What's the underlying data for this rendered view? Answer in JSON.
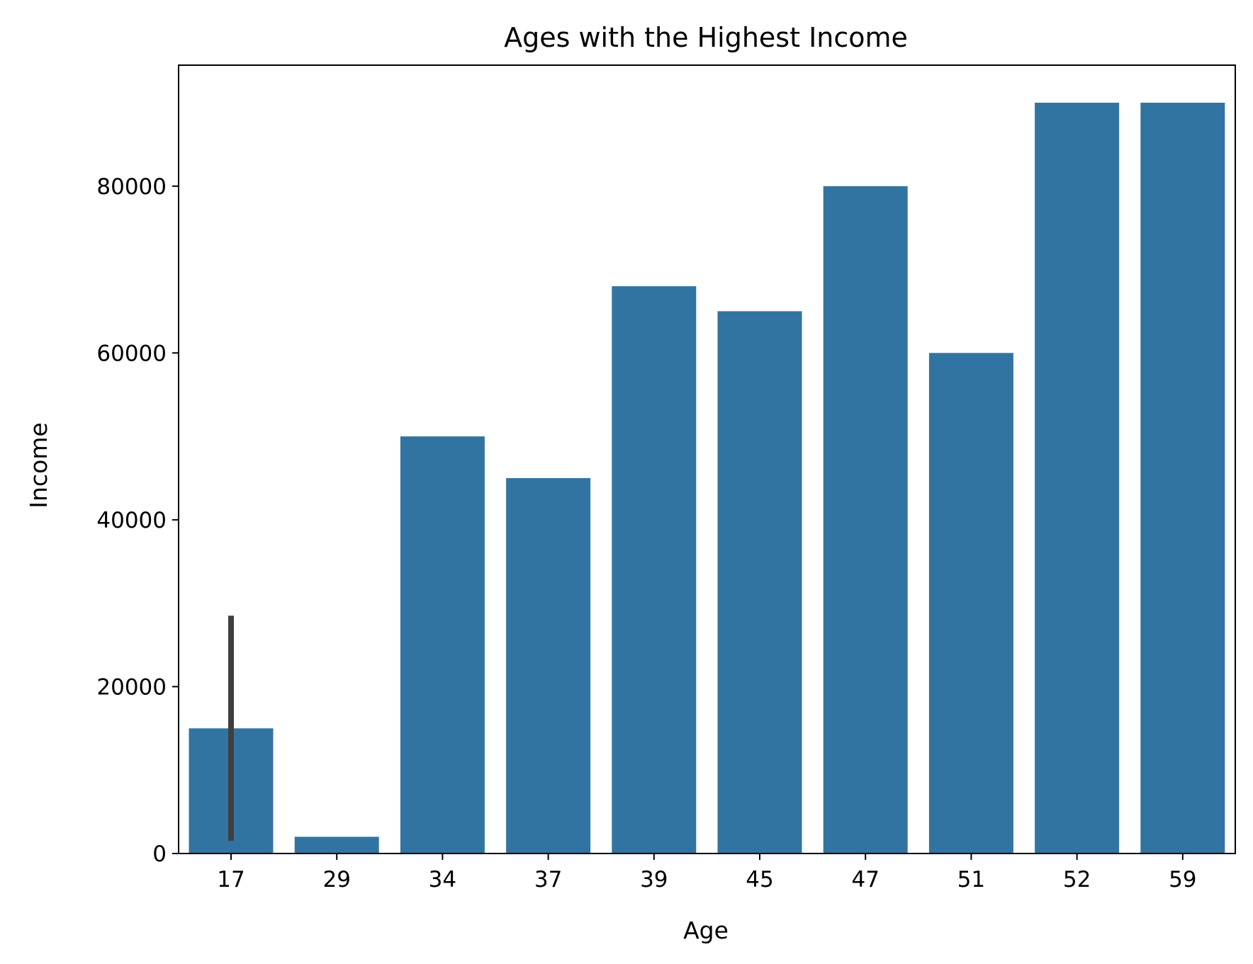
{
  "chart_data": {
    "type": "bar",
    "title": "Ages with the Highest Income",
    "xlabel": "Age",
    "ylabel": "Income",
    "categories": [
      "17",
      "29",
      "34",
      "37",
      "39",
      "45",
      "47",
      "51",
      "52",
      "59"
    ],
    "values": [
      15000,
      2000,
      50000,
      45000,
      68000,
      65000,
      80000,
      60000,
      90000,
      90000
    ],
    "error_bars": [
      {
        "category": "17",
        "low": 1500,
        "high": 28500
      }
    ],
    "yticks": [
      0,
      20000,
      40000,
      60000,
      80000
    ],
    "ytick_labels": [
      "0",
      "20000",
      "40000",
      "60000",
      "80000"
    ],
    "ylim": [
      0,
      94500
    ],
    "grid": false,
    "legend": "none",
    "colors": {
      "bar": "#3274a1",
      "error_bar": "#3f3f3f",
      "axes": "#000000",
      "background": "#ffffff"
    }
  }
}
